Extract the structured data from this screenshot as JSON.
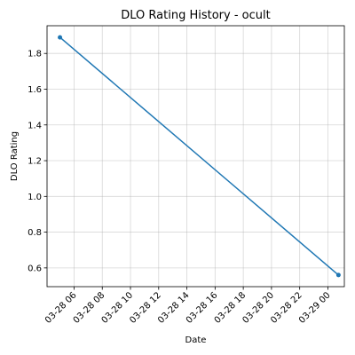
{
  "chart_data": {
    "type": "line",
    "title": "DLO Rating History - ocult",
    "xlabel": "Date",
    "ylabel": "DLO Rating",
    "x_tick_labels": [
      "03-28 06",
      "03-28 08",
      "03-28 10",
      "03-28 12",
      "03-28 14",
      "03-28 16",
      "03-28 18",
      "03-28 20",
      "03-28 22",
      "03-29 00"
    ],
    "x_tick_values": [
      "03-28 06:00",
      "03-28 08:00",
      "03-28 10:00",
      "03-28 12:00",
      "03-28 14:00",
      "03-28 16:00",
      "03-28 18:00",
      "03-28 20:00",
      "03-28 22:00",
      "03-29 00:00"
    ],
    "y_ticks": [
      0.6,
      0.8,
      1.0,
      1.2,
      1.4,
      1.6,
      1.8
    ],
    "y_tick_labels": [
      "0.6",
      "0.8",
      "1.0",
      "1.2",
      "1.4",
      "1.6",
      "1.8"
    ],
    "xlim": [
      "03-28 04:05",
      "03-29 01:10"
    ],
    "ylim": [
      0.495,
      1.955
    ],
    "grid": true,
    "series": [
      {
        "x": [
          "03-28 05:00",
          "03-29 00:45"
        ],
        "values": [
          1.89,
          0.56
        ],
        "color": "#1f77b4"
      }
    ]
  }
}
